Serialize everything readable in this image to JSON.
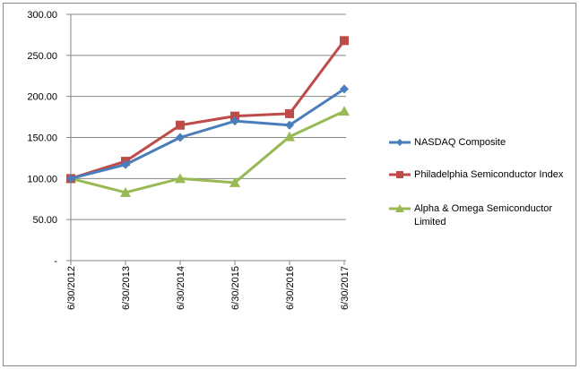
{
  "chart_data": {
    "type": "line",
    "categories": [
      "6/30/2012",
      "6/30/2013",
      "6/30/2014",
      "6/30/2015",
      "6/30/2016",
      "6/30/2017"
    ],
    "ylim": [
      0,
      300
    ],
    "yticks": [
      0,
      50,
      100,
      150,
      200,
      250,
      300
    ],
    "ytick_labels": [
      "-",
      "50.00",
      "100.00",
      "150.00",
      "200.00",
      "250.00",
      "300.00"
    ],
    "grid": true,
    "legend_position": "right",
    "series": [
      {
        "name": "NASDAQ Composite",
        "color": "#4a7ebb",
        "marker": "diamond",
        "values": [
          100,
          117,
          150,
          170,
          165,
          209
        ]
      },
      {
        "name": "Philadelphia Semiconductor Index",
        "color": "#be4b48",
        "marker": "square",
        "values": [
          100,
          121,
          165,
          176,
          179,
          268
        ]
      },
      {
        "name": "Alpha & Omega Semiconductor Limited",
        "color": "#98b954",
        "marker": "triangle",
        "values": [
          100,
          83,
          100,
          95,
          151,
          182
        ]
      }
    ]
  }
}
